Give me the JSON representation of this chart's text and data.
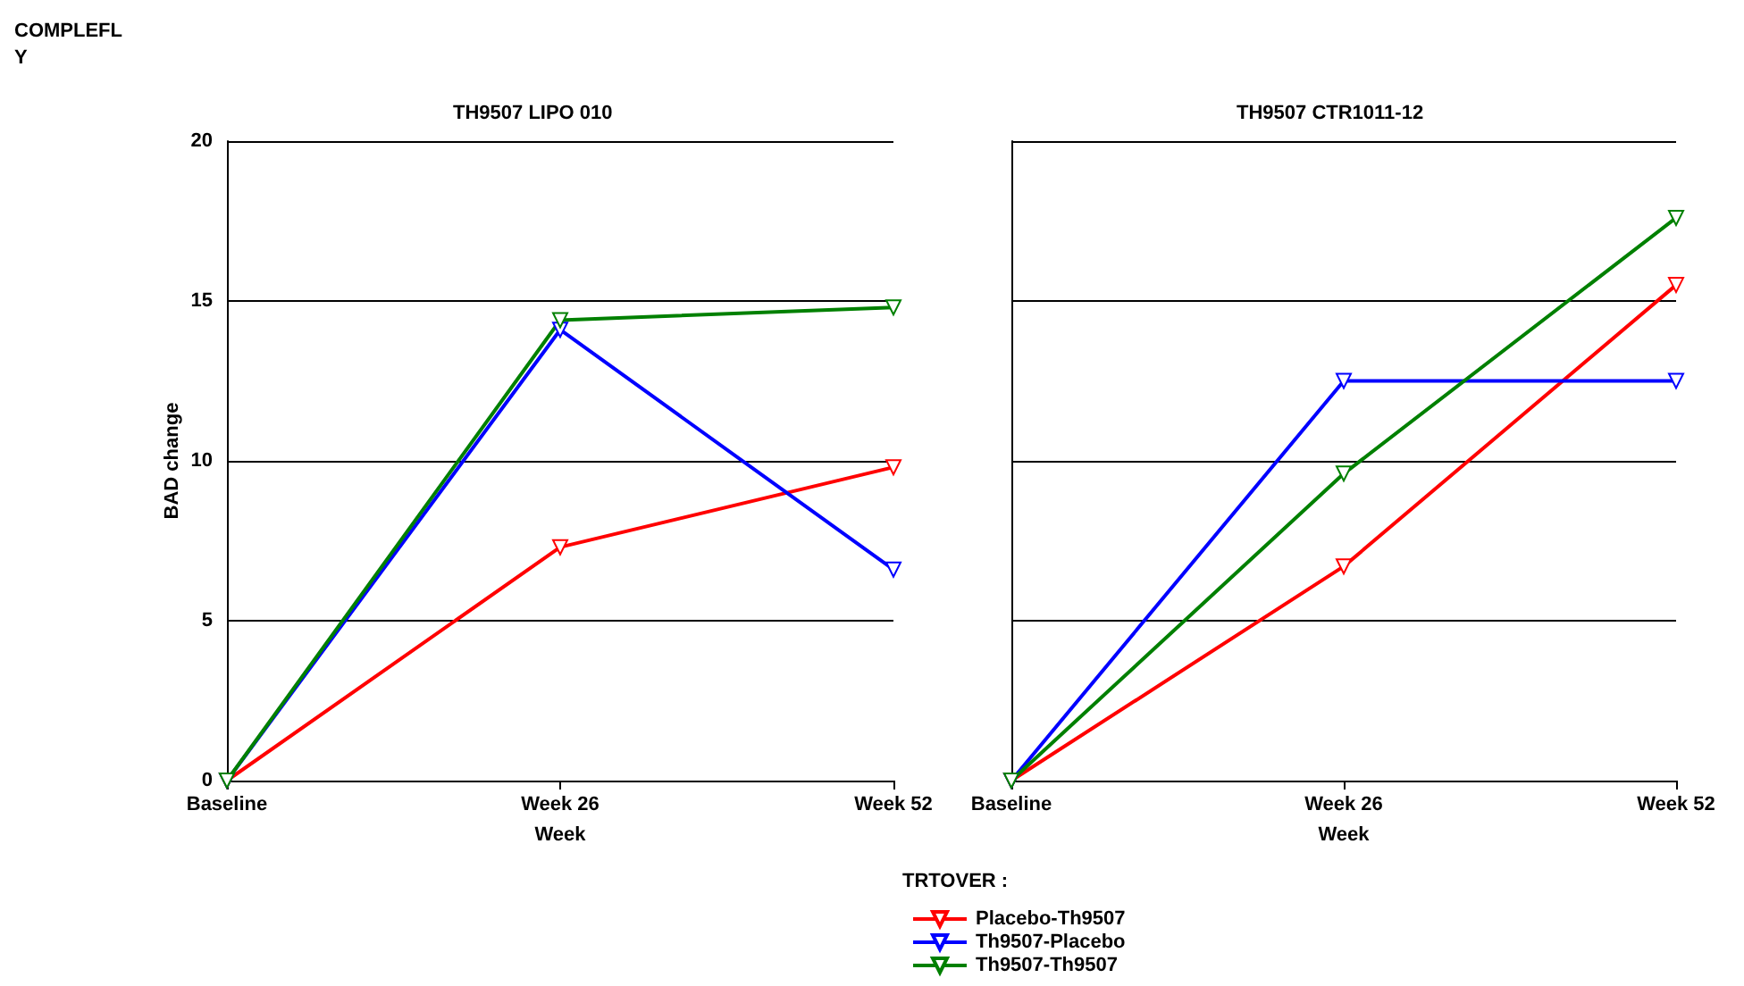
{
  "chart_data": [
    {
      "type": "line",
      "title": "TH9507 LIPO 010",
      "xlabel": "Week",
      "ylabel": "BAD change",
      "legend_title": "TRTOVER :",
      "annotations": [
        "COMPLEFL Y"
      ],
      "categories": [
        "Baseline",
        "Week 26",
        "Week 52"
      ],
      "ylim": [
        0,
        20
      ],
      "yticks": [
        0,
        5,
        10,
        15,
        20
      ],
      "grid": "y",
      "legend": "bottom",
      "marker": "triangle",
      "line_style": "solid",
      "series": [
        {
          "name": "Placebo-Th9507",
          "color": "#ff0000",
          "values": [
            0,
            7.3,
            9.8
          ]
        },
        {
          "name": "Th9507-Placebo",
          "color": "#0000ff",
          "values": [
            0,
            14.1,
            6.6
          ]
        },
        {
          "name": "Th9507-Th9507",
          "color": "#008000",
          "values": [
            0,
            14.4,
            14.8
          ]
        }
      ]
    },
    {
      "type": "line",
      "title": "TH9507 CTR1011-12",
      "xlabel": "Week",
      "categories": [
        "Baseline",
        "Week 26",
        "Week 52"
      ],
      "ylim": [
        0,
        20
      ],
      "yticks": [
        0,
        5,
        10,
        15,
        20
      ],
      "grid": "y",
      "tick_labels": "x",
      "marker": "triangle",
      "line_style": "solid",
      "series": [
        {
          "color": "#ff0000",
          "values": [
            0,
            6.7,
            15.5
          ]
        },
        {
          "color": "#0000ff",
          "values": [
            0,
            12.5,
            12.5
          ]
        },
        {
          "color": "#008000",
          "values": [
            0,
            9.6,
            17.6
          ]
        }
      ]
    }
  ]
}
